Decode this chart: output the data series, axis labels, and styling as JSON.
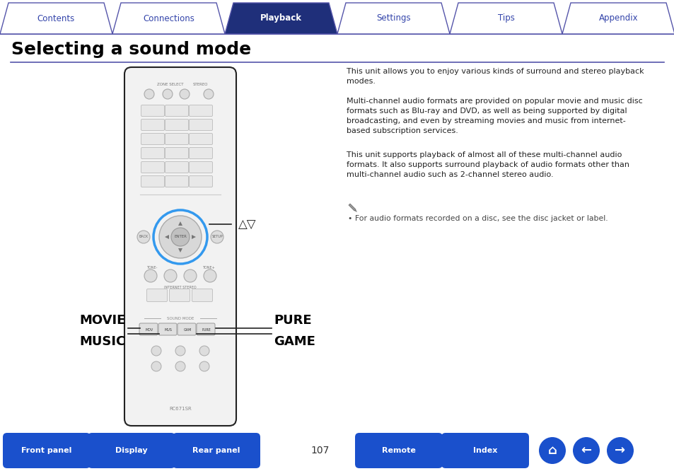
{
  "title": "Selecting a sound mode",
  "tab_labels": [
    "Contents",
    "Connections",
    "Playback",
    "Settings",
    "Tips",
    "Appendix"
  ],
  "active_tab": 2,
  "tab_bg_active": "#1f2f7a",
  "tab_bg_inactive": "#ffffff",
  "tab_border": "#5555aa",
  "tab_text_active": "#ffffff",
  "tab_text_inactive": "#3344aa",
  "body_bg": "#ffffff",
  "title_color": "#000000",
  "para1": "This unit allows you to enjoy various kinds of surround and stereo playback\nmodes.",
  "para2": "Multi-channel audio formats are provided on popular movie and music disc\nformats such as Blu-ray and DVD, as well as being supported by digital\nbroadcasting, and even by streaming movies and music from internet-\nbased subscription services.",
  "para3": "This unit supports playback of almost all of these multi-channel audio\nformats. It also supports surround playback of audio formats other than\nmulti-channel audio such as 2-channel stereo audio.",
  "note": "• For audio formats recorded on a disc, see the disc jacket or label.",
  "arrow_label": "△▽",
  "label_movie": "MOVIE",
  "label_music": "MUSIC",
  "label_pure": "PURE",
  "label_game": "GAME",
  "page_number": "107",
  "btn_bg_grad_top": "#4477dd",
  "btn_bg": "#1a50cc",
  "btn_text": "#ffffff",
  "remote_color": "#f2f2f2",
  "remote_border": "#222222",
  "highlight_color": "#3399ee",
  "text_color": "#222222",
  "small_text_color": "#444444",
  "bottom_btn_labels": [
    "Front panel",
    "Display",
    "Rear panel",
    "Remote",
    "Index"
  ]
}
